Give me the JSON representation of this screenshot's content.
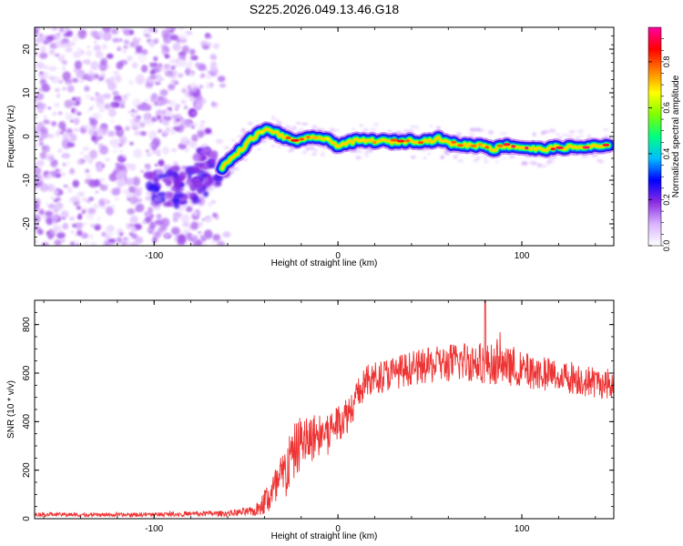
{
  "title": "S225.2026.049.13.46.G18",
  "chart_data": [
    {
      "type": "heatmap",
      "xlabel": "Height of straight line (km)",
      "ylabel": "Frequency (Hz)",
      "xlim": [
        -165,
        150
      ],
      "ylim": [
        -25,
        25
      ],
      "xticks": [
        -100,
        0,
        100
      ],
      "yticks": [
        -20,
        -10,
        0,
        10,
        20
      ],
      "xticklabels": [
        "-100",
        "0",
        "100"
      ],
      "yticklabels": [
        "-20",
        "-10",
        "0",
        "10",
        "20"
      ],
      "colorbar": {
        "label": "Normalized spectral amplitude",
        "range": [
          0,
          0.95
        ],
        "ticks": [
          0.0,
          0.2,
          0.4,
          0.6,
          0.8
        ],
        "ticklabels": [
          "0.0",
          "0.2",
          "0.4",
          "0.6",
          "0.8"
        ],
        "colormap": [
          "#ffffff",
          "#d9b3ff",
          "#8a2be2",
          "#0000ff",
          "#00bfff",
          "#00ff80",
          "#80ff00",
          "#ffff00",
          "#ff8000",
          "#ff0000",
          "#ff00a0"
        ]
      },
      "noise_region": {
        "x_range": [
          -165,
          -60
        ],
        "freq_range": [
          -25,
          25
        ],
        "amplitude": 0.12
      },
      "ridge": {
        "x": [
          -63,
          -55,
          -47,
          -40,
          -35,
          -28,
          -20,
          -12,
          -5,
          0,
          10,
          20,
          30,
          40,
          50,
          55,
          60,
          70,
          80,
          85,
          90,
          100,
          110,
          120,
          130,
          140,
          148
        ],
        "freq": [
          -7,
          -4,
          -0.5,
          1.5,
          1.2,
          -0.5,
          -1,
          0,
          -1,
          -2,
          -1,
          -1,
          -1.2,
          -1,
          -1,
          -0.5,
          -1.5,
          -2,
          -2,
          -3,
          -2,
          -2.5,
          -3,
          -2.5,
          -2.5,
          -2.3,
          -2.3
        ],
        "amplitude": [
          0.3,
          0.35,
          0.4,
          0.7,
          0.7,
          0.8,
          0.8,
          0.7,
          0.6,
          0.45,
          0.65,
          0.7,
          0.75,
          0.8,
          0.75,
          0.8,
          0.7,
          0.7,
          0.75,
          0.7,
          0.8,
          0.85,
          0.9,
          0.85,
          0.9,
          0.9,
          0.85
        ]
      },
      "blob_region": {
        "x": [
          -95,
          -80,
          -70
        ],
        "freq": [
          -12,
          -11,
          -7
        ],
        "amplitude": [
          0.22,
          0.22,
          0.2
        ]
      }
    },
    {
      "type": "line",
      "xlabel": "Height of straight line (km)",
      "ylabel": "SNR (10 * v/v)",
      "xlim": [
        -165,
        150
      ],
      "ylim": [
        0,
        900
      ],
      "xticks": [
        -100,
        0,
        100
      ],
      "yticks": [
        0,
        200,
        400,
        600,
        800
      ],
      "xticklabels": [
        "-100",
        "0",
        "100"
      ],
      "yticklabels": [
        "0",
        "200",
        "400",
        "600",
        "800"
      ],
      "series": [
        {
          "name": "SNR",
          "color": "#ee3333",
          "envelope_x": [
            -165,
            -120,
            -80,
            -60,
            -45,
            -40,
            -35,
            -30,
            -25,
            -20,
            -15,
            -10,
            -5,
            0,
            5,
            10,
            15,
            20,
            25,
            30,
            40,
            50,
            60,
            70,
            80,
            90,
            100,
            110,
            120,
            130,
            140,
            150
          ],
          "envelope_mean": [
            18,
            15,
            20,
            22,
            30,
            70,
            110,
            170,
            260,
            320,
            330,
            350,
            360,
            400,
            430,
            500,
            560,
            580,
            590,
            600,
            620,
            630,
            640,
            650,
            640,
            630,
            615,
            600,
            590,
            580,
            560,
            555
          ],
          "noise_amplitude": [
            8,
            8,
            10,
            12,
            20,
            60,
            90,
            110,
            120,
            110,
            100,
            90,
            90,
            80,
            80,
            70,
            70,
            70,
            70,
            70,
            70,
            75,
            80,
            85,
            85,
            80,
            75,
            70,
            70,
            70,
            65,
            60
          ],
          "peak": {
            "x": 80,
            "y": 900
          }
        }
      ]
    }
  ]
}
